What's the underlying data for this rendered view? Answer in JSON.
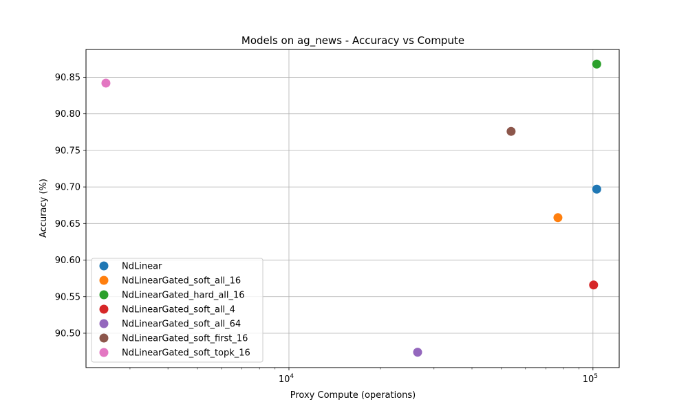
{
  "chart_data": {
    "type": "scatter",
    "title": "Models on ag_news - Accuracy vs Compute",
    "xlabel": "Proxy Compute (operations)",
    "ylabel": "Accuracy (%)",
    "xscale": "log",
    "xlim": [
      2150,
      122000
    ],
    "ylim": [
      90.453,
      90.888
    ],
    "x_ticks": [
      {
        "value": 10000,
        "base": "10",
        "exp": "4"
      },
      {
        "value": 100000,
        "base": "10",
        "exp": "5"
      }
    ],
    "x_minor_ticks": [
      3000,
      4000,
      5000,
      6000,
      7000,
      8000,
      9000,
      20000,
      30000,
      40000,
      50000,
      60000,
      70000,
      80000,
      90000
    ],
    "y_ticks": [
      "90.50",
      "90.55",
      "90.60",
      "90.65",
      "90.70",
      "90.75",
      "90.80",
      "90.85"
    ],
    "grid": true,
    "legend_position": "lower-left",
    "series": [
      {
        "name": "NdLinear",
        "color": "#1f77b4",
        "x": [
          102900
        ],
        "y": [
          90.697
        ]
      },
      {
        "name": "NdLinearGated_soft_all_16",
        "color": "#ff7f0e",
        "x": [
          76700
        ],
        "y": [
          90.658
        ]
      },
      {
        "name": "NdLinearGated_hard_all_16",
        "color": "#2ca02c",
        "x": [
          102900
        ],
        "y": [
          90.868
        ]
      },
      {
        "name": "NdLinearGated_soft_all_4",
        "color": "#d62728",
        "x": [
          100500
        ],
        "y": [
          90.566
        ]
      },
      {
        "name": "NdLinearGated_soft_all_64",
        "color": "#9467bd",
        "x": [
          26500
        ],
        "y": [
          90.474
        ]
      },
      {
        "name": "NdLinearGated_soft_first_16",
        "color": "#8c564b",
        "x": [
          53800
        ],
        "y": [
          90.776
        ]
      },
      {
        "name": "NdLinearGated_soft_topk_16",
        "color": "#e377c2",
        "x": [
          2500
        ],
        "y": [
          90.842
        ]
      }
    ]
  }
}
